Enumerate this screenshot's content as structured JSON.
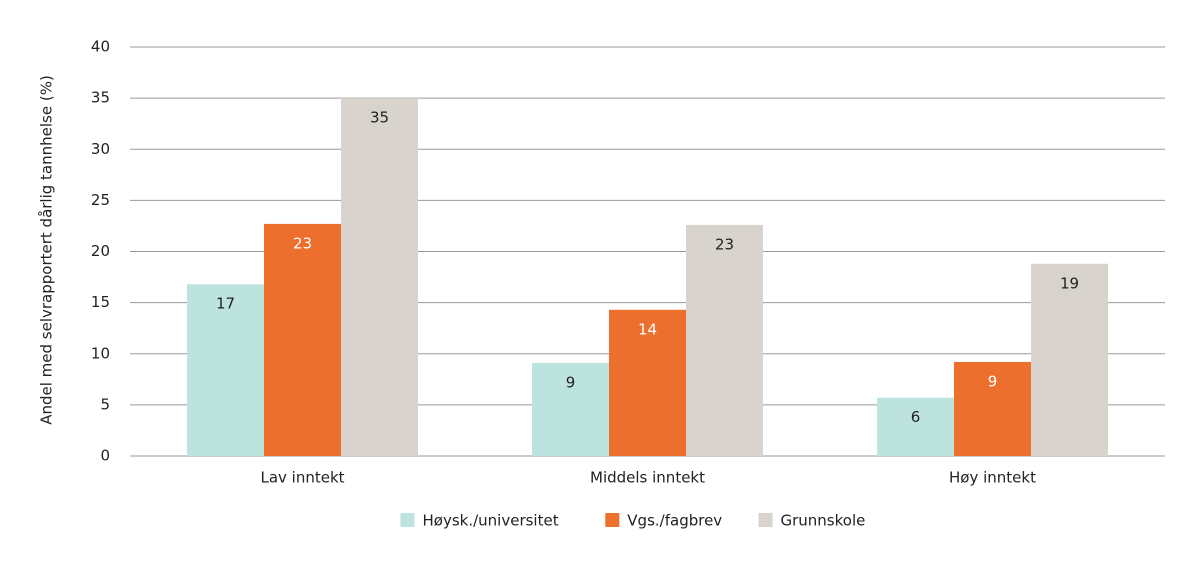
{
  "chart_data": {
    "type": "bar",
    "y_label": "Andel med selvrapportert dårlig tannhelse (%)",
    "categories": [
      "Lav inntekt",
      "Middels inntekt",
      "Høy inntekt"
    ],
    "series": [
      {
        "name": "Høysk./universitet",
        "color": "#bde3df",
        "values": [
          16.8,
          9.1,
          5.7
        ],
        "value_labels": [
          "17",
          "9",
          "6"
        ]
      },
      {
        "name": "Vgs./fagbrev",
        "color": "#ec6f2d",
        "values": [
          22.7,
          14.3,
          9.2
        ],
        "value_labels": [
          "23",
          "14",
          "9"
        ]
      },
      {
        "name": "Grunnskole",
        "color": "#d8d3cc",
        "values": [
          35.0,
          22.6,
          18.8
        ],
        "value_labels": [
          "35",
          "23",
          "19"
        ]
      }
    ],
    "ylim": [
      0,
      40
    ],
    "yticks": [
      0,
      5,
      10,
      15,
      20,
      25,
      30,
      35,
      40
    ],
    "grid": true,
    "legend": "bottom"
  }
}
